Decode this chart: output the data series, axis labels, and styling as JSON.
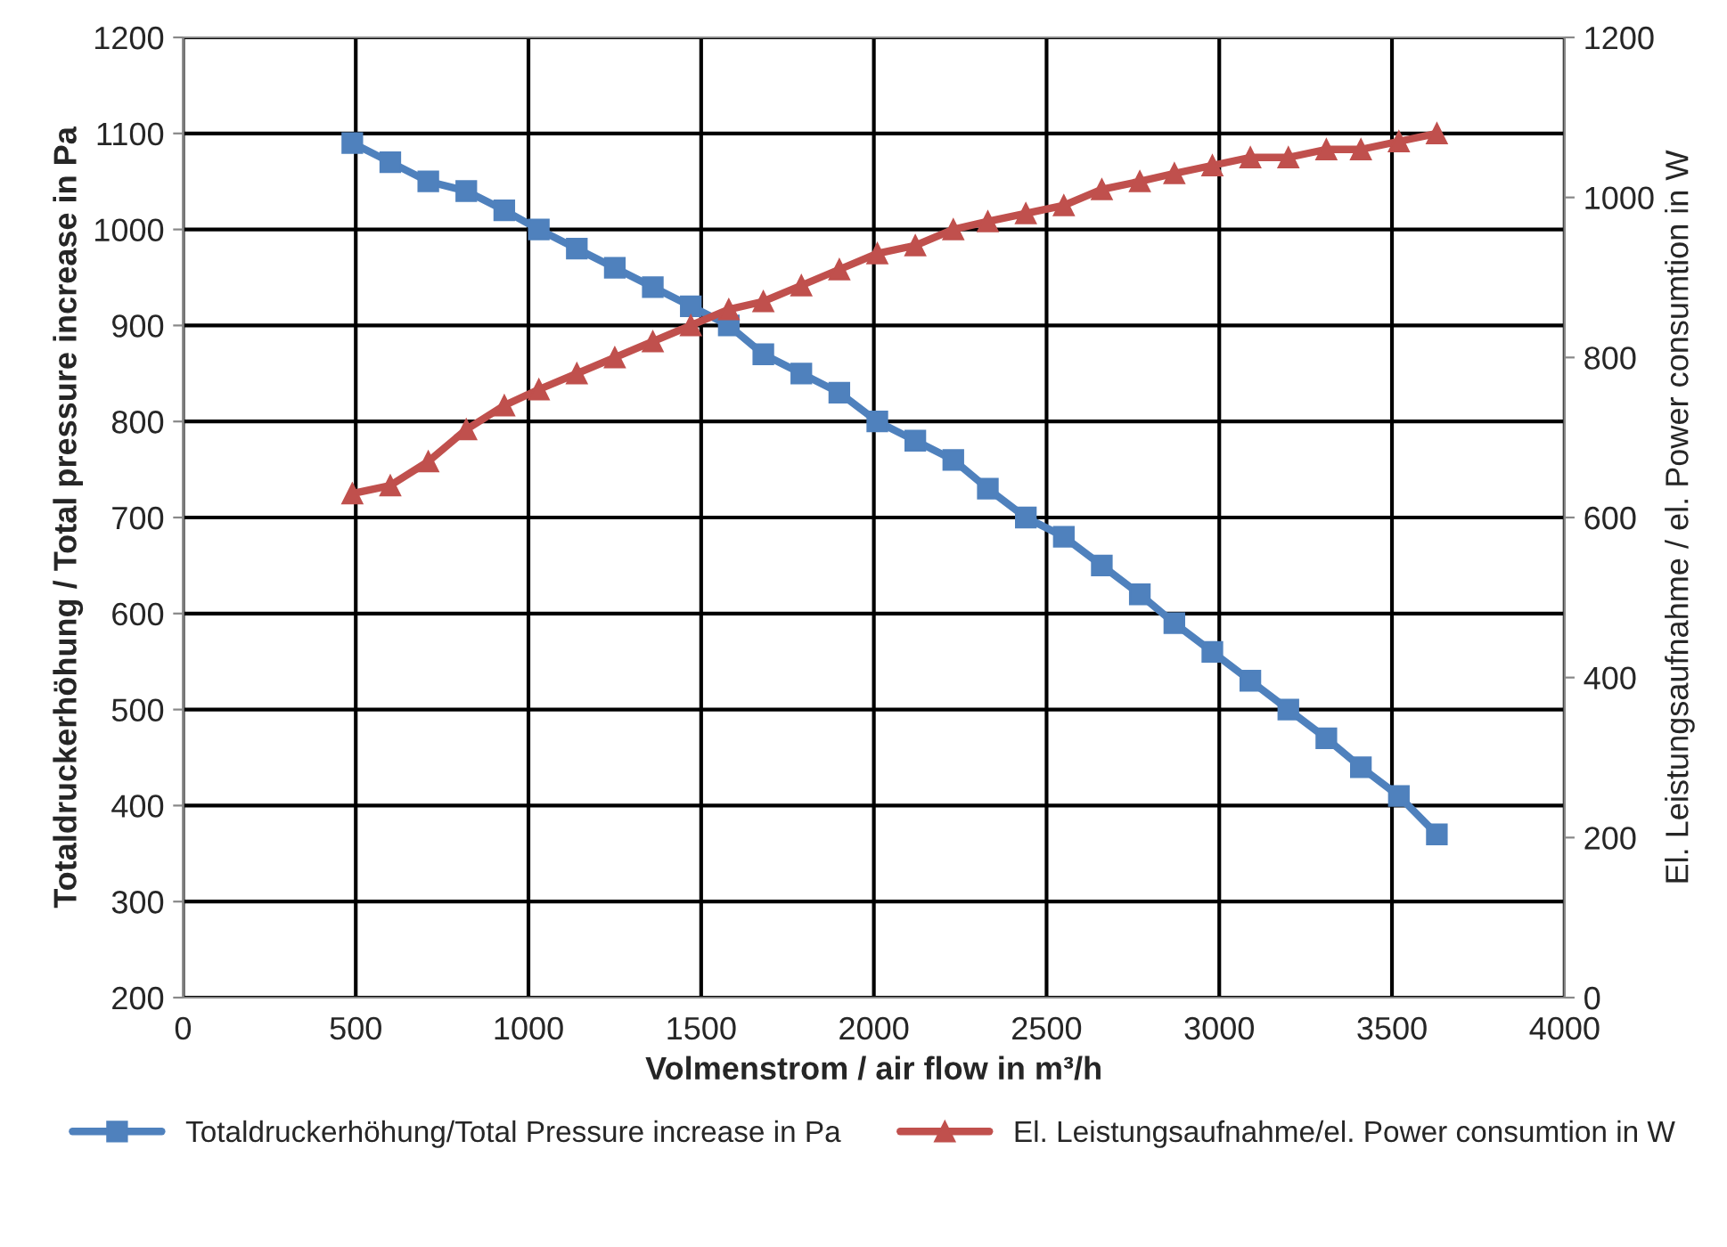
{
  "chart_data": {
    "type": "line",
    "xlabel": "Volmenstrom / air flow in m³/h",
    "ylabel": "Totaldruckerhöhung / Total pressure increase in Pa",
    "y2label": "El. Leistungsaufnahme / el. Power consumtion in W",
    "x": [
      490,
      600,
      710,
      820,
      930,
      1030,
      1140,
      1250,
      1360,
      1470,
      1580,
      1680,
      1790,
      1900,
      2010,
      2120,
      2230,
      2330,
      2440,
      2550,
      2660,
      2770,
      2870,
      2980,
      3090,
      3200,
      3310,
      3410,
      3520,
      3630
    ],
    "series": [
      {
        "name": "Totaldruckerhöhung/Total Pressure increase in Pa",
        "color": "#4f81bd",
        "marker": "square",
        "values": [
          1090,
          1070,
          1050,
          1040,
          1020,
          1000,
          980,
          960,
          940,
          920,
          900,
          870,
          850,
          830,
          800,
          780,
          760,
          730,
          700,
          680,
          650,
          620,
          590,
          560,
          530,
          500,
          470,
          440,
          410,
          370
        ]
      },
      {
        "name": "El. Leistungsaufnahme/el. Power consumtion in W",
        "color": "#c0504d",
        "marker": "triangle",
        "axis": "y2",
        "values": [
          630,
          640,
          670,
          710,
          740,
          760,
          780,
          800,
          820,
          840,
          860,
          870,
          890,
          910,
          930,
          940,
          960,
          970,
          980,
          990,
          1010,
          1020,
          1030,
          1040,
          1050,
          1050,
          1060,
          1060,
          1070,
          1080
        ]
      }
    ],
    "xlim": [
      0,
      4000
    ],
    "xticks": [
      0,
      500,
      1000,
      1500,
      2000,
      2500,
      3000,
      3500,
      4000
    ],
    "ylim": [
      200,
      1200
    ],
    "yticks": [
      200,
      300,
      400,
      500,
      600,
      700,
      800,
      900,
      1000,
      1100,
      1200
    ],
    "y2lim": [
      0,
      1200
    ],
    "y2ticks": [
      0,
      200,
      400,
      600,
      800,
      1000,
      1200
    ],
    "grid": true,
    "legend": "bottom",
    "line_style": "solid"
  }
}
